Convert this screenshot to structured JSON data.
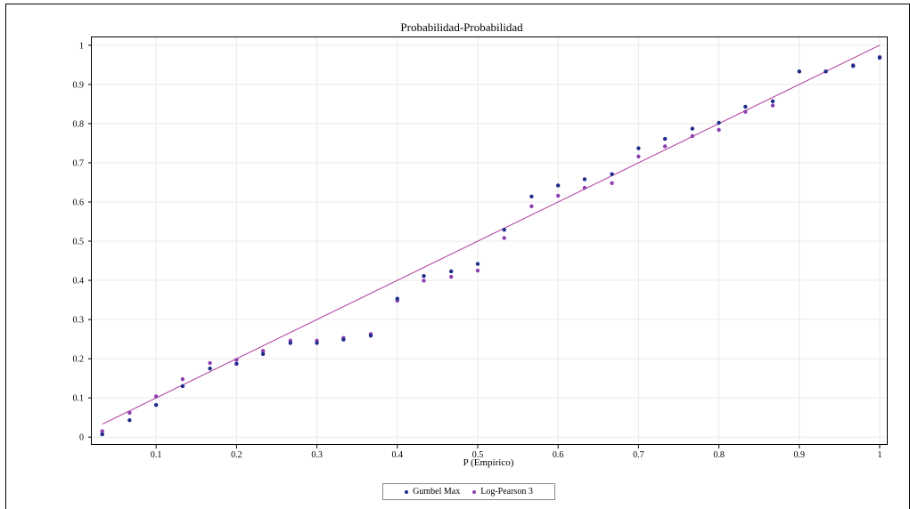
{
  "chart_data": {
    "type": "scatter",
    "title": "Probabilidad-Probabilidad",
    "xlabel": "P (Empírico)",
    "ylabel": "",
    "xlim": [
      0.02,
      1.01
    ],
    "ylim": [
      -0.02,
      1.02
    ],
    "x_ticks": [
      0.1,
      0.2,
      0.3,
      0.4,
      0.5,
      0.6,
      0.7,
      0.8,
      0.9,
      1
    ],
    "y_ticks": [
      0,
      0.1,
      0.2,
      0.3,
      0.4,
      0.5,
      0.6,
      0.7,
      0.8,
      0.9,
      1
    ],
    "x_tick_labels": [
      "0.1",
      "0.2",
      "0.3",
      "0.4",
      "0.5",
      "0.6",
      "0.7",
      "0.8",
      "0.9",
      "1"
    ],
    "y_tick_labels": [
      "0",
      "0.1",
      "0.2",
      "0.3",
      "0.4",
      "0.5",
      "0.6",
      "0.7",
      "0.8",
      "0.9",
      "1"
    ],
    "grid": true,
    "legend_position": "bottom-center",
    "reference_line": {
      "x": [
        0.033,
        1.0
      ],
      "y": [
        0.033,
        1.0
      ],
      "color": "#b03a9e"
    },
    "x": [
      0.033,
      0.067,
      0.1,
      0.133,
      0.167,
      0.2,
      0.233,
      0.267,
      0.3,
      0.333,
      0.367,
      0.4,
      0.433,
      0.467,
      0.5,
      0.533,
      0.567,
      0.6,
      0.633,
      0.667,
      0.7,
      0.733,
      0.767,
      0.8,
      0.833,
      0.867,
      0.9,
      0.933,
      0.967,
      1.0
    ],
    "series": [
      {
        "name": "Gumbel Max",
        "color": "#1f2d8a",
        "values": [
          0.007,
          0.043,
          0.082,
          0.13,
          0.175,
          0.187,
          0.212,
          0.24,
          0.24,
          0.249,
          0.259,
          0.353,
          0.411,
          0.423,
          0.442,
          0.529,
          0.614,
          0.642,
          0.658,
          0.671,
          0.737,
          0.761,
          0.787,
          0.802,
          0.843,
          0.857,
          0.933,
          0.933,
          0.947,
          0.968
        ]
      },
      {
        "name": "Log-Pearson 3",
        "color": "#8e3fb0",
        "values": [
          0.015,
          0.062,
          0.104,
          0.148,
          0.189,
          0.197,
          0.22,
          0.246,
          0.246,
          0.253,
          0.263,
          0.348,
          0.399,
          0.409,
          0.425,
          0.508,
          0.589,
          0.616,
          0.636,
          0.648,
          0.716,
          0.742,
          0.768,
          0.784,
          0.83,
          0.846,
          0.933,
          0.933,
          0.949,
          0.97
        ]
      }
    ]
  }
}
